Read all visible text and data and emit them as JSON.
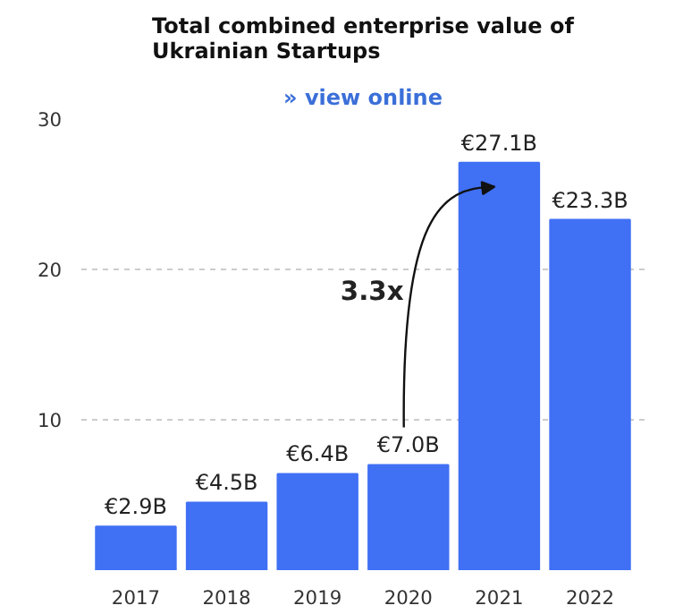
{
  "chart_data": {
    "type": "bar",
    "title": "Total combined enterprise value of\nUkrainian Startups",
    "subtitle": "» view online",
    "categories": [
      "2017",
      "2018",
      "2019",
      "2020",
      "2021",
      "2022"
    ],
    "values": [
      2.9,
      4.5,
      6.4,
      7.0,
      27.1,
      23.3
    ],
    "value_labels": [
      "€2.9B",
      "€4.5B",
      "€6.4B",
      "€7.0B",
      "€27.1B",
      "€23.3B"
    ],
    "color": "#4070f4",
    "ylim": [
      0,
      30
    ],
    "yticks": [
      10,
      20,
      30
    ],
    "grid": "y",
    "annotations": [
      "3.3x"
    ]
  }
}
